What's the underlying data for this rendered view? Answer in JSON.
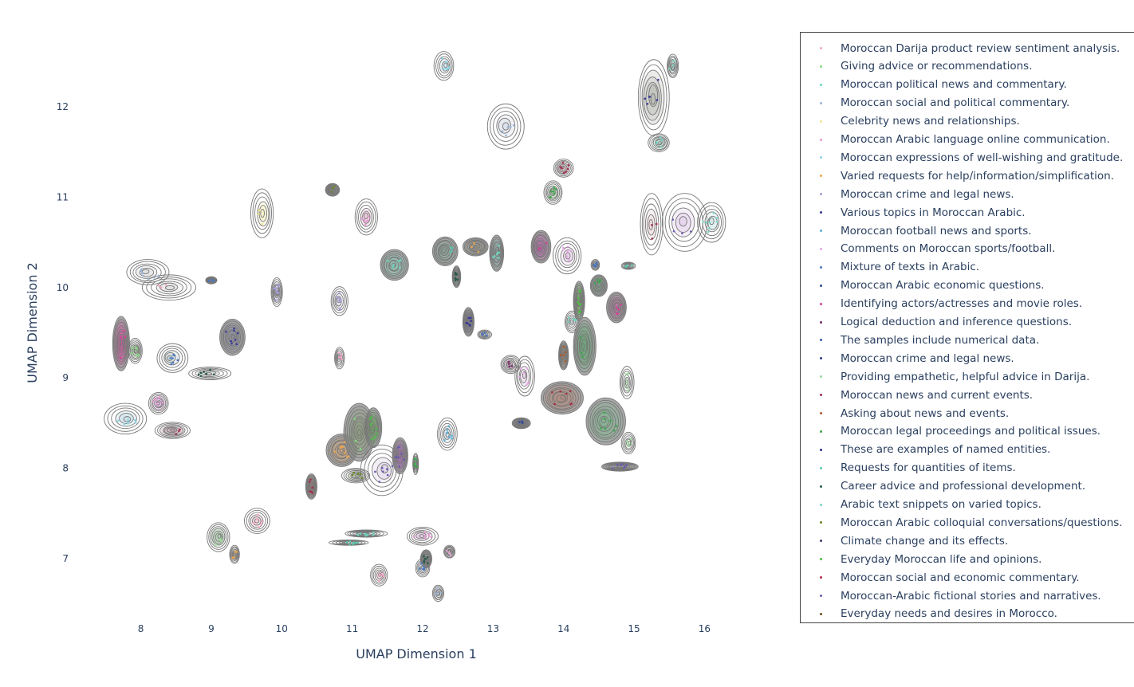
{
  "chart_data": {
    "type": "scatter",
    "title": "",
    "xlabel": "UMAP Dimension 1",
    "ylabel": "UMAP Dimension 2",
    "xlim": [
      7.45,
      16.55
    ],
    "ylim": [
      6.35,
      12.65
    ],
    "xticks": [
      8,
      9,
      10,
      11,
      12,
      13,
      14,
      15,
      16
    ],
    "yticks": [
      7,
      8,
      9,
      10,
      11,
      12
    ],
    "grid": false,
    "legend_position": "right",
    "legend": [
      {
        "name": "Moroccan Darija product review sentiment analysis.",
        "color": "#f4a6c8"
      },
      {
        "name": "Giving advice or recommendations.",
        "color": "#7fe07f"
      },
      {
        "name": "Moroccan political news and commentary.",
        "color": "#6cd6c0"
      },
      {
        "name": "Moroccan social and political commentary.",
        "color": "#9bb4d6"
      },
      {
        "name": "Celebrity news and relationships.",
        "color": "#f1e58a"
      },
      {
        "name": "Moroccan Arabic language online communication.",
        "color": "#e59ad0"
      },
      {
        "name": "Moroccan expressions of well-wishing and gratitude.",
        "color": "#8ad6e6"
      },
      {
        "name": "Varied requests for help/information/simplification.",
        "color": "#e9a54c"
      },
      {
        "name": "Moroccan crime and legal news.",
        "color": "#a69bd6"
      },
      {
        "name": "Various topics in Moroccan Arabic.",
        "color": "#3a3a9a"
      },
      {
        "name": "Moroccan football news and sports.",
        "color": "#5ab0d8"
      },
      {
        "name": "Comments on Moroccan sports/football.",
        "color": "#e4a6e4"
      },
      {
        "name": "Mixture of texts in Arabic.",
        "color": "#4a78c0"
      },
      {
        "name": "Moroccan Arabic economic questions.",
        "color": "#2c4a9a"
      },
      {
        "name": "Identifying actors/actresses and movie roles.",
        "color": "#d6409a"
      },
      {
        "name": "Logical deduction and inference questions.",
        "color": "#7a2a6a"
      },
      {
        "name": "The samples include numerical data.",
        "color": "#3a56b0"
      },
      {
        "name": "Moroccan crime and legal news.",
        "color": "#2a3a8a"
      },
      {
        "name": "Providing empathetic, helpful advice in Darija.",
        "color": "#9ad69a"
      },
      {
        "name": "Moroccan news and current events.",
        "color": "#a0304a"
      },
      {
        "name": "Asking about news and events.",
        "color": "#b05a2a"
      },
      {
        "name": "Moroccan legal proceedings and political issues.",
        "color": "#3aa64a"
      },
      {
        "name": "These are examples of named entities.",
        "color": "#2a2a8a"
      },
      {
        "name": "Requests for quantities of items.",
        "color": "#5ac8b0"
      },
      {
        "name": "Career advice and professional development.",
        "color": "#2a5a4a"
      },
      {
        "name": "Arabic text snippets on varied topics.",
        "color": "#7ad6c8"
      },
      {
        "name": "Moroccan Arabic colloquial conversations/questions.",
        "color": "#6a8a2a"
      },
      {
        "name": "Climate change and its effects.",
        "color": "#3a3a6a"
      },
      {
        "name": "Everyday Moroccan life and opinions.",
        "color": "#4ac040"
      },
      {
        "name": "Moroccan social and economic commentary.",
        "color": "#b02a4a"
      },
      {
        "name": "Moroccan-Arabic fictional stories and narratives.",
        "color": "#6a5ab0"
      },
      {
        "name": "Everyday needs and desires in Morocco.",
        "color": "#6a4a1a"
      }
    ],
    "clusters": [
      {
        "x": 8.4,
        "y": 10.0,
        "sx": 0.38,
        "sy": 0.14,
        "legend_index": 0,
        "fill": "#c9c9c9",
        "density": "light"
      },
      {
        "x": 8.1,
        "y": 10.17,
        "sx": 0.3,
        "sy": 0.14,
        "legend_index": 3,
        "fill": "#c9c9c9",
        "density": "light"
      },
      {
        "x": 7.72,
        "y": 9.38,
        "sx": 0.12,
        "sy": 0.3,
        "legend_index": 14,
        "fill": "#d24a9a",
        "density": "dense"
      },
      {
        "x": 7.92,
        "y": 9.3,
        "sx": 0.1,
        "sy": 0.14,
        "legend_index": 1,
        "fill": "#8ab47a",
        "density": "medium"
      },
      {
        "x": 8.45,
        "y": 9.22,
        "sx": 0.22,
        "sy": 0.16,
        "legend_index": 12,
        "fill": "#9ab0b0",
        "density": "light"
      },
      {
        "x": 7.78,
        "y": 8.55,
        "sx": 0.3,
        "sy": 0.17,
        "legend_index": 6,
        "fill": "#a0c8d8",
        "density": "light"
      },
      {
        "x": 8.25,
        "y": 8.72,
        "sx": 0.14,
        "sy": 0.12,
        "legend_index": 5,
        "fill": "#d898d8",
        "density": "medium"
      },
      {
        "x": 8.45,
        "y": 8.42,
        "sx": 0.25,
        "sy": 0.09,
        "legend_index": 19,
        "fill": "#b08098",
        "density": "medium"
      },
      {
        "x": 9.0,
        "y": 10.08,
        "sx": 0.08,
        "sy": 0.04,
        "legend_index": 12,
        "fill": "#4a78c0",
        "density": "dense"
      },
      {
        "x": 9.3,
        "y": 9.45,
        "sx": 0.18,
        "sy": 0.2,
        "legend_index": 9,
        "fill": "#8a8a9a",
        "density": "dense"
      },
      {
        "x": 8.98,
        "y": 9.05,
        "sx": 0.3,
        "sy": 0.07,
        "legend_index": 24,
        "fill": "#c8c8c8",
        "density": "light"
      },
      {
        "x": 9.72,
        "y": 10.82,
        "sx": 0.16,
        "sy": 0.27,
        "legend_index": 4,
        "fill": "#f0e8a0",
        "density": "light"
      },
      {
        "x": 9.93,
        "y": 9.95,
        "sx": 0.08,
        "sy": 0.16,
        "legend_index": 8,
        "fill": "#b0a8d8",
        "density": "medium"
      },
      {
        "x": 9.1,
        "y": 7.24,
        "sx": 0.16,
        "sy": 0.16,
        "legend_index": 18,
        "fill": "#8ab48a",
        "density": "medium"
      },
      {
        "x": 9.65,
        "y": 7.42,
        "sx": 0.18,
        "sy": 0.14,
        "legend_index": 0,
        "fill": "#e0a8b8",
        "density": "light"
      },
      {
        "x": 9.33,
        "y": 7.05,
        "sx": 0.07,
        "sy": 0.1,
        "legend_index": 7,
        "fill": "#c89a6a",
        "density": "medium"
      },
      {
        "x": 10.82,
        "y": 9.85,
        "sx": 0.12,
        "sy": 0.16,
        "legend_index": 8,
        "fill": "#c0bcd8",
        "density": "light"
      },
      {
        "x": 10.82,
        "y": 9.22,
        "sx": 0.07,
        "sy": 0.12,
        "legend_index": 0,
        "fill": "#e0c0c8",
        "density": "light"
      },
      {
        "x": 10.72,
        "y": 11.08,
        "sx": 0.1,
        "sy": 0.07,
        "legend_index": 26,
        "fill": "#8a8a8a",
        "density": "dense"
      },
      {
        "x": 11.2,
        "y": 10.78,
        "sx": 0.16,
        "sy": 0.2,
        "legend_index": 5,
        "fill": "#e0a0c0",
        "density": "light"
      },
      {
        "x": 10.42,
        "y": 7.8,
        "sx": 0.08,
        "sy": 0.14,
        "legend_index": 19,
        "fill": "#9a6a6a",
        "density": "dense"
      },
      {
        "x": 10.85,
        "y": 8.2,
        "sx": 0.22,
        "sy": 0.18,
        "legend_index": 7,
        "fill": "#c8a078",
        "density": "dense"
      },
      {
        "x": 11.1,
        "y": 8.4,
        "sx": 0.22,
        "sy": 0.32,
        "legend_index": 1,
        "fill": "#8a9a7a",
        "density": "dense"
      },
      {
        "x": 11.3,
        "y": 8.45,
        "sx": 0.12,
        "sy": 0.22,
        "legend_index": 28,
        "fill": "#70b060",
        "density": "dense"
      },
      {
        "x": 11.05,
        "y": 7.92,
        "sx": 0.2,
        "sy": 0.08,
        "legend_index": 26,
        "fill": "#9aaa8a",
        "density": "medium"
      },
      {
        "x": 11.42,
        "y": 7.98,
        "sx": 0.3,
        "sy": 0.28,
        "legend_index": 30,
        "fill": "#c8b4d8",
        "density": "light"
      },
      {
        "x": 11.68,
        "y": 8.14,
        "sx": 0.11,
        "sy": 0.2,
        "legend_index": 30,
        "fill": "#b060c0",
        "density": "dense"
      },
      {
        "x": 11.9,
        "y": 8.05,
        "sx": 0.04,
        "sy": 0.12,
        "legend_index": 21,
        "fill": "#7ab07a",
        "density": "medium"
      },
      {
        "x": 11.2,
        "y": 7.28,
        "sx": 0.3,
        "sy": 0.04,
        "legend_index": 2,
        "fill": "#9ab0b0",
        "density": "medium"
      },
      {
        "x": 10.95,
        "y": 7.18,
        "sx": 0.28,
        "sy": 0.03,
        "legend_index": 23,
        "fill": "#c0d8d0",
        "density": "light"
      },
      {
        "x": 11.38,
        "y": 6.82,
        "sx": 0.12,
        "sy": 0.12,
        "legend_index": 0,
        "fill": "#e0b0b8",
        "density": "light"
      },
      {
        "x": 11.6,
        "y": 10.25,
        "sx": 0.2,
        "sy": 0.17,
        "legend_index": 2,
        "fill": "#90c8b8",
        "density": "dense"
      },
      {
        "x": 12.0,
        "y": 7.25,
        "sx": 0.22,
        "sy": 0.1,
        "legend_index": 5,
        "fill": "#d0a0d0",
        "density": "light"
      },
      {
        "x": 12.05,
        "y": 7.0,
        "sx": 0.08,
        "sy": 0.1,
        "legend_index": 24,
        "fill": "#9a9aaa",
        "density": "dense"
      },
      {
        "x": 12.38,
        "y": 7.08,
        "sx": 0.08,
        "sy": 0.07,
        "legend_index": 5,
        "fill": "#c0a0b0",
        "density": "medium"
      },
      {
        "x": 12.0,
        "y": 6.9,
        "sx": 0.1,
        "sy": 0.1,
        "legend_index": 12,
        "fill": "#b8c8e0",
        "density": "light"
      },
      {
        "x": 12.22,
        "y": 6.62,
        "sx": 0.08,
        "sy": 0.09,
        "legend_index": 3,
        "fill": "#b8c8d8",
        "density": "light"
      },
      {
        "x": 12.35,
        "y": 8.38,
        "sx": 0.14,
        "sy": 0.18,
        "legend_index": 10,
        "fill": "#a8c8d8",
        "density": "light"
      },
      {
        "x": 12.3,
        "y": 12.45,
        "sx": 0.14,
        "sy": 0.16,
        "legend_index": 6,
        "fill": "#a8d0e0",
        "density": "light"
      },
      {
        "x": 13.18,
        "y": 11.78,
        "sx": 0.26,
        "sy": 0.25,
        "legend_index": 3,
        "fill": "#c0c8d8",
        "density": "light"
      },
      {
        "x": 12.32,
        "y": 10.4,
        "sx": 0.18,
        "sy": 0.16,
        "legend_index": 23,
        "fill": "#8aaa9a",
        "density": "dense"
      },
      {
        "x": 12.75,
        "y": 10.45,
        "sx": 0.18,
        "sy": 0.1,
        "legend_index": 7,
        "fill": "#a09a8a",
        "density": "dense"
      },
      {
        "x": 13.05,
        "y": 10.38,
        "sx": 0.1,
        "sy": 0.2,
        "legend_index": 2,
        "fill": "#90b8b0",
        "density": "dense"
      },
      {
        "x": 12.48,
        "y": 10.12,
        "sx": 0.06,
        "sy": 0.12,
        "legend_index": 24,
        "fill": "#7a9a8a",
        "density": "dense"
      },
      {
        "x": 12.65,
        "y": 9.62,
        "sx": 0.08,
        "sy": 0.16,
        "legend_index": 9,
        "fill": "#6a6a8a",
        "density": "dense"
      },
      {
        "x": 12.88,
        "y": 9.48,
        "sx": 0.1,
        "sy": 0.05,
        "legend_index": 12,
        "fill": "#a0b0e0",
        "density": "light"
      },
      {
        "x": 13.25,
        "y": 9.15,
        "sx": 0.14,
        "sy": 0.1,
        "legend_index": 15,
        "fill": "#c0a0b0",
        "density": "medium"
      },
      {
        "x": 13.45,
        "y": 9.02,
        "sx": 0.14,
        "sy": 0.22,
        "legend_index": 11,
        "fill": "#d8b8d8",
        "density": "light"
      },
      {
        "x": 13.4,
        "y": 8.5,
        "sx": 0.13,
        "sy": 0.06,
        "legend_index": 13,
        "fill": "#5a5a8a",
        "density": "dense"
      },
      {
        "x": 13.68,
        "y": 10.45,
        "sx": 0.14,
        "sy": 0.18,
        "legend_index": 14,
        "fill": "#c060b0",
        "density": "dense"
      },
      {
        "x": 14.05,
        "y": 10.35,
        "sx": 0.2,
        "sy": 0.2,
        "legend_index": 11,
        "fill": "#e0b8e0",
        "density": "light"
      },
      {
        "x": 14.0,
        "y": 11.32,
        "sx": 0.14,
        "sy": 0.1,
        "legend_index": 19,
        "fill": "#c8a0a8",
        "density": "medium"
      },
      {
        "x": 13.85,
        "y": 11.05,
        "sx": 0.13,
        "sy": 0.13,
        "legend_index": 21,
        "fill": "#90c090",
        "density": "medium"
      },
      {
        "x": 13.98,
        "y": 8.78,
        "sx": 0.3,
        "sy": 0.18,
        "legend_index": 19,
        "fill": "#b88878",
        "density": "dense"
      },
      {
        "x": 14.0,
        "y": 9.25,
        "sx": 0.07,
        "sy": 0.16,
        "legend_index": 20,
        "fill": "#9a8a6a",
        "density": "dense"
      },
      {
        "x": 14.22,
        "y": 9.85,
        "sx": 0.08,
        "sy": 0.22,
        "legend_index": 28,
        "fill": "#6aaa5a",
        "density": "dense"
      },
      {
        "x": 14.12,
        "y": 9.62,
        "sx": 0.1,
        "sy": 0.12,
        "legend_index": 2,
        "fill": "#b0c8c0",
        "density": "light"
      },
      {
        "x": 14.3,
        "y": 9.35,
        "sx": 0.16,
        "sy": 0.32,
        "legend_index": 21,
        "fill": "#60a870",
        "density": "dense"
      },
      {
        "x": 14.45,
        "y": 10.25,
        "sx": 0.06,
        "sy": 0.06,
        "legend_index": 12,
        "fill": "#a8b0d0",
        "density": "light"
      },
      {
        "x": 14.5,
        "y": 10.02,
        "sx": 0.12,
        "sy": 0.12,
        "legend_index": 21,
        "fill": "#7aaa8a",
        "density": "dense"
      },
      {
        "x": 14.75,
        "y": 9.78,
        "sx": 0.14,
        "sy": 0.17,
        "legend_index": 14,
        "fill": "#b8709a",
        "density": "dense"
      },
      {
        "x": 14.6,
        "y": 8.52,
        "sx": 0.28,
        "sy": 0.26,
        "legend_index": 21,
        "fill": "#80b890",
        "density": "dense"
      },
      {
        "x": 14.92,
        "y": 8.28,
        "sx": 0.1,
        "sy": 0.12,
        "legend_index": 18,
        "fill": "#b0d8b8",
        "density": "light"
      },
      {
        "x": 14.9,
        "y": 8.95,
        "sx": 0.1,
        "sy": 0.18,
        "legend_index": 18,
        "fill": "#c0e0c8",
        "density": "light"
      },
      {
        "x": 14.8,
        "y": 8.02,
        "sx": 0.26,
        "sy": 0.05,
        "legend_index": 30,
        "fill": "#a0a0a8",
        "density": "dense"
      },
      {
        "x": 14.92,
        "y": 10.24,
        "sx": 0.1,
        "sy": 0.04,
        "legend_index": 23,
        "fill": "#b8c8c8",
        "density": "light"
      },
      {
        "x": 15.28,
        "y": 12.1,
        "sx": 0.22,
        "sy": 0.42,
        "legend_index": 9,
        "fill": "#9aa098",
        "density": "medium"
      },
      {
        "x": 15.55,
        "y": 12.45,
        "sx": 0.08,
        "sy": 0.13,
        "legend_index": 2,
        "fill": "#a0c8c0",
        "density": "medium"
      },
      {
        "x": 15.35,
        "y": 11.6,
        "sx": 0.15,
        "sy": 0.1,
        "legend_index": 25,
        "fill": "#a0d0c0",
        "density": "medium"
      },
      {
        "x": 15.25,
        "y": 10.7,
        "sx": 0.16,
        "sy": 0.34,
        "legend_index": 19,
        "fill": "#e0c0c8",
        "density": "light"
      },
      {
        "x": 15.72,
        "y": 10.72,
        "sx": 0.32,
        "sy": 0.32,
        "legend_index": 30,
        "fill": "#d0b0e0",
        "density": "light"
      },
      {
        "x": 16.1,
        "y": 10.72,
        "sx": 0.2,
        "sy": 0.22,
        "legend_index": 25,
        "fill": "#b0d8d8",
        "density": "light"
      }
    ]
  }
}
